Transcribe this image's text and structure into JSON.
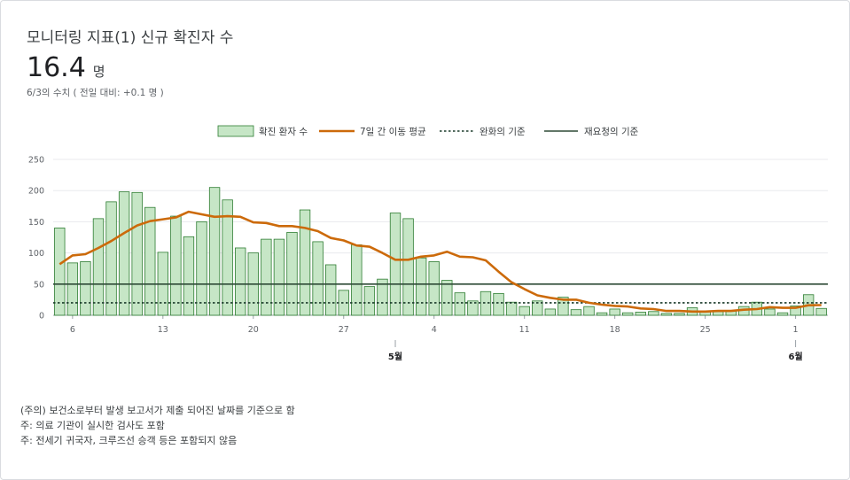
{
  "header": {
    "title": "모니터링 지표(1) 신규 확진자 수",
    "value": "16.4",
    "unit": "명",
    "subtitle": "6/3의 수치 ( 전일 대비: +0.1 명 )"
  },
  "notes": [
    "(주의) 보건소로부터 발생 보고서가 제출 되어진 날짜를 기준으로 함",
    "주: 의료 기관이 실시한 검사도 포함",
    "주: 전세기 귀국자, 크루즈선 승객 등은 포함되지 않음"
  ],
  "colors": {
    "bar_fill": "#c6e6c6",
    "bar_stroke": "#2e7d32",
    "avg_line": "#cc6a0a",
    "relax_line": "#1b3b2b",
    "request_line": "#2e4a36"
  },
  "chart_data": {
    "type": "bar",
    "x": [
      "4/5",
      "4/6",
      "4/7",
      "4/8",
      "4/9",
      "4/10",
      "4/11",
      "4/12",
      "4/13",
      "4/14",
      "4/15",
      "4/16",
      "4/17",
      "4/18",
      "4/19",
      "4/20",
      "4/21",
      "4/22",
      "4/23",
      "4/24",
      "4/25",
      "4/26",
      "4/27",
      "4/28",
      "4/29",
      "4/30",
      "5/1",
      "5/2",
      "5/3",
      "5/4",
      "5/5",
      "5/6",
      "5/7",
      "5/8",
      "5/9",
      "5/10",
      "5/11",
      "5/12",
      "5/13",
      "5/14",
      "5/15",
      "5/16",
      "5/17",
      "5/18",
      "5/19",
      "5/20",
      "5/21",
      "5/22",
      "5/23",
      "5/24",
      "5/25",
      "5/26",
      "5/27",
      "5/28",
      "5/29",
      "5/30",
      "5/31",
      "6/1",
      "6/2",
      "6/3"
    ],
    "x_tick_labels": [
      {
        "index": 1,
        "label": "6"
      },
      {
        "index": 8,
        "label": "13"
      },
      {
        "index": 15,
        "label": "20"
      },
      {
        "index": 22,
        "label": "27"
      },
      {
        "index": 29,
        "label": "4"
      },
      {
        "index": 36,
        "label": "11"
      },
      {
        "index": 43,
        "label": "18"
      },
      {
        "index": 50,
        "label": "25"
      },
      {
        "index": 57,
        "label": "1"
      }
    ],
    "month_labels": [
      {
        "index": 26,
        "label": "5월"
      },
      {
        "index": 57,
        "label": "6월"
      }
    ],
    "series": [
      {
        "name": "확진 환자 수",
        "type": "bar",
        "values": [
          140,
          84,
          86,
          155,
          182,
          198,
          197,
          173,
          101,
          159,
          126,
          150,
          205,
          185,
          108,
          100,
          122,
          122,
          133,
          169,
          118,
          81,
          40,
          113,
          46,
          58,
          164,
          155,
          92,
          86,
          56,
          36,
          23,
          38,
          35,
          21,
          14,
          23,
          10,
          29,
          9,
          14,
          4,
          10,
          4,
          5,
          6,
          3,
          3,
          12,
          6,
          6,
          7,
          14,
          21,
          10,
          4,
          15,
          33,
          11
        ]
      },
      {
        "name": "7일 간 이동 평균",
        "type": "line",
        "values": [
          82,
          96,
          98,
          108,
          119,
          132,
          144,
          151,
          154,
          157,
          166,
          162,
          158,
          159,
          158,
          149,
          148,
          143,
          143,
          140,
          135,
          124,
          120,
          112,
          110,
          100,
          89,
          89,
          94,
          96,
          102,
          94,
          93,
          88,
          70,
          53,
          42,
          32,
          28,
          25,
          25,
          20,
          17,
          15,
          14,
          11,
          10,
          7,
          7,
          6,
          6,
          7,
          7,
          9,
          10,
          13,
          12,
          12,
          16,
          16.4
        ]
      },
      {
        "name": "완화의 기준",
        "type": "line",
        "value": 20
      },
      {
        "name": "재요청의 기준",
        "type": "line",
        "value": 50
      }
    ],
    "yticks": [
      0,
      50,
      100,
      150,
      200,
      250
    ],
    "ylim": [
      0,
      250
    ],
    "grid": true,
    "legend_position": "top"
  }
}
